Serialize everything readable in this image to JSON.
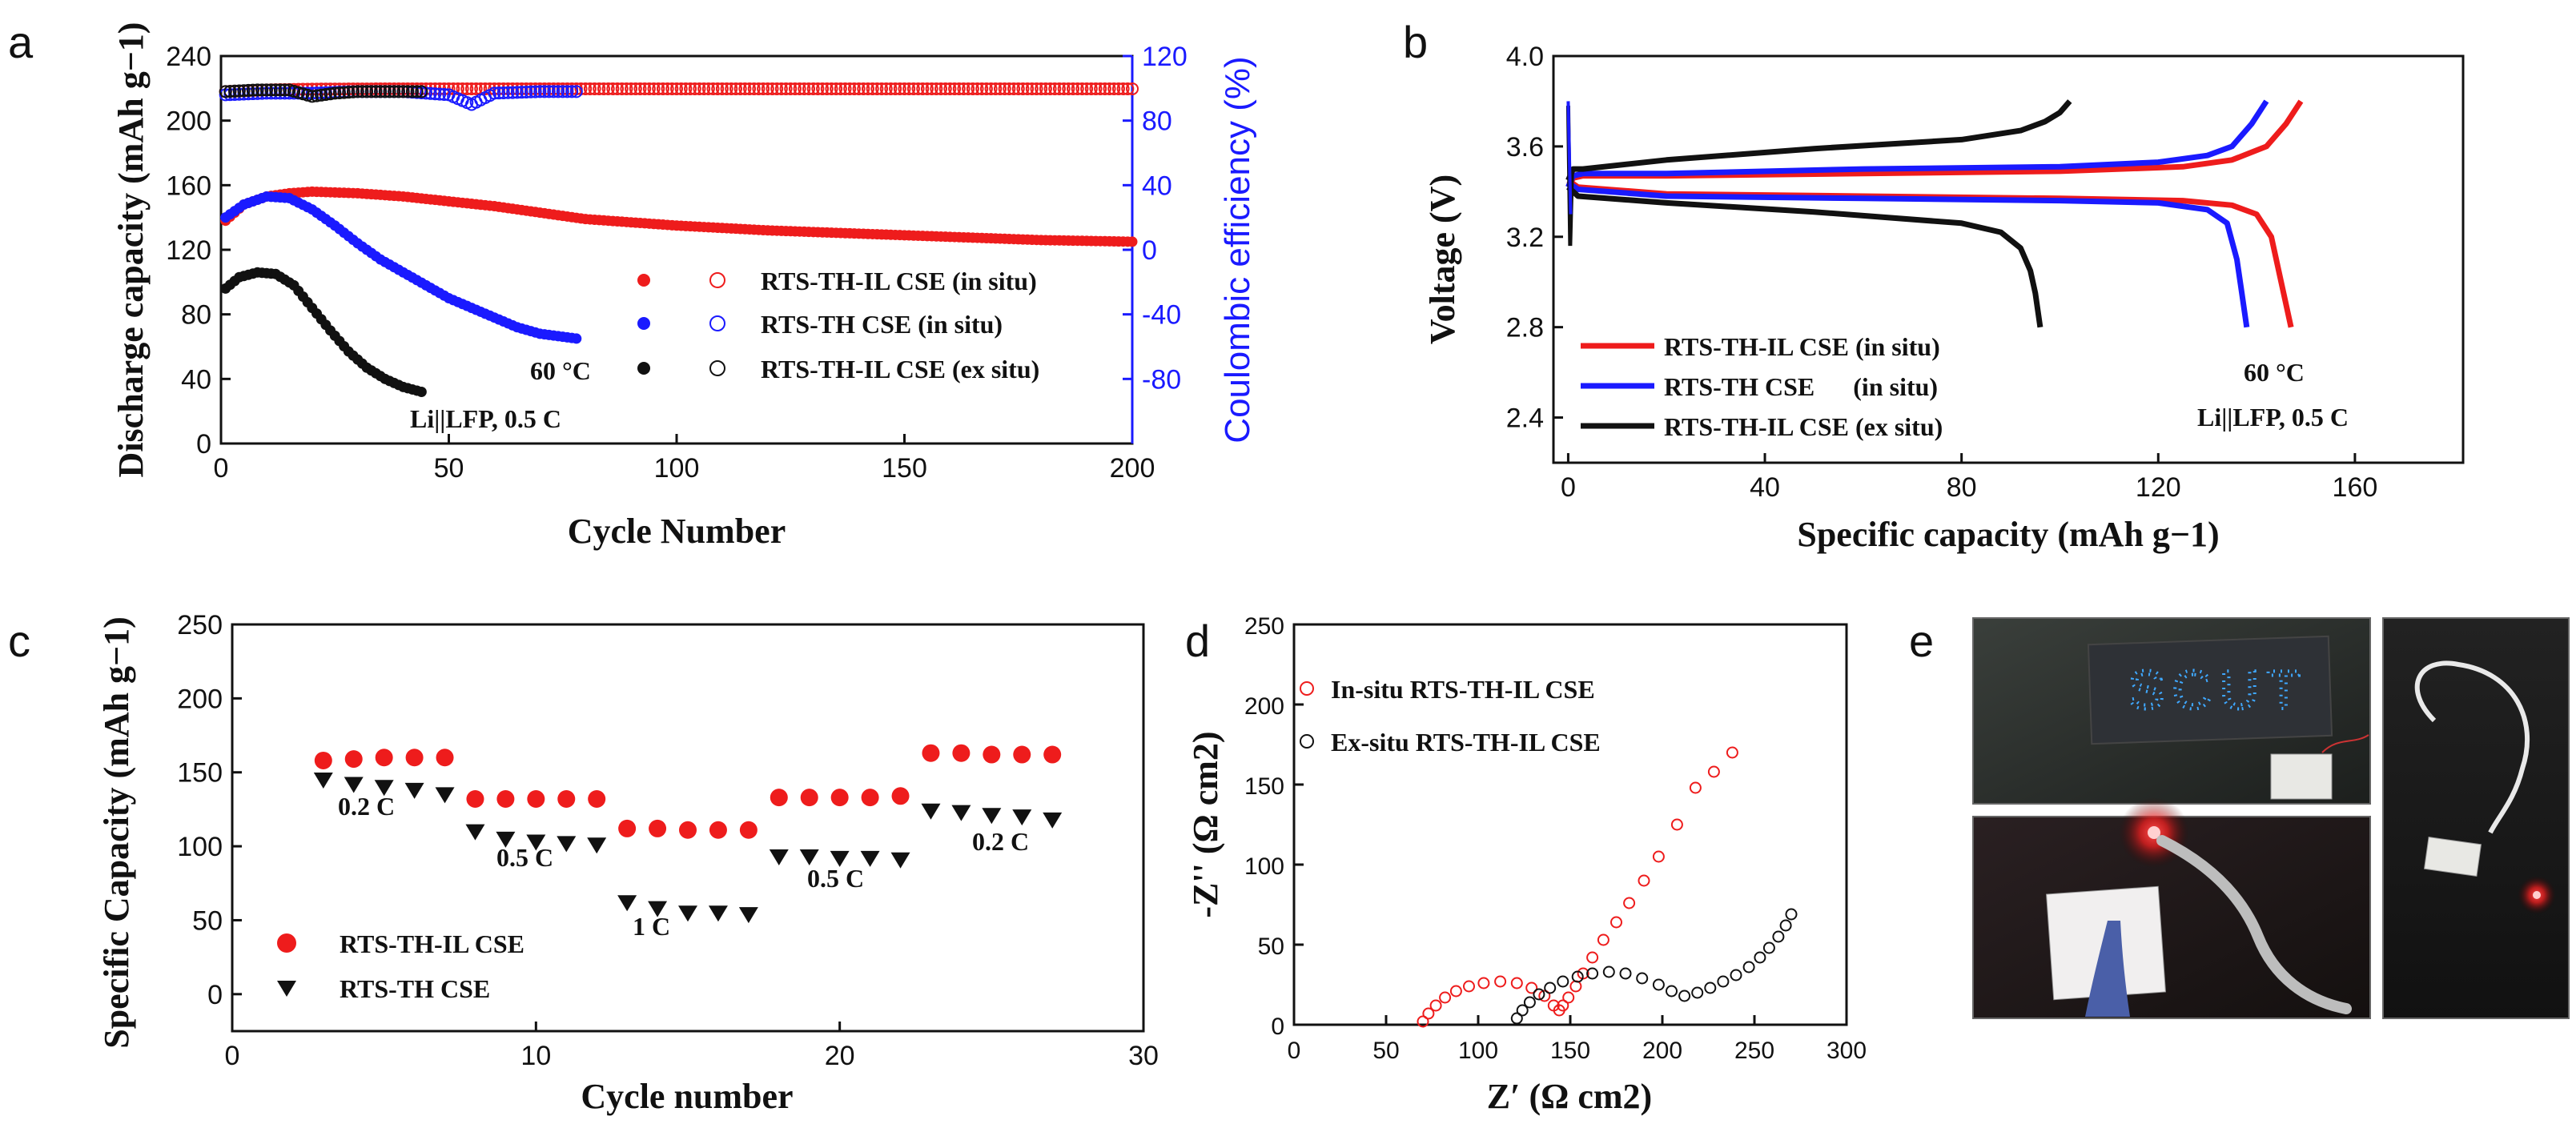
{
  "panel_letters": [
    "a",
    "b",
    "c",
    "d",
    "e"
  ],
  "panel_e": {
    "sign_text": "SCUT"
  },
  "colors": {
    "red": "#ee1c1c",
    "blue": "#1a1aff",
    "black": "#111111",
    "axis_blue": "#1a1aff"
  },
  "chart_data": [
    {
      "id": "a",
      "type": "scatter",
      "title": "",
      "xlabel": "Cycle Number",
      "ylabel": "Discharge capacity (mAh g−1)",
      "y2label": "Coulombic efficiency (%)",
      "xlim": [
        0,
        200
      ],
      "ylim": [
        0,
        240
      ],
      "y2lim": [
        -120,
        120
      ],
      "xticks": [
        "0",
        "50",
        "100",
        "150",
        "200"
      ],
      "yticks": [
        "0",
        "40",
        "80",
        "120",
        "160",
        "200",
        "240"
      ],
      "y2ticks": [
        "-80",
        "-40",
        "0",
        "40",
        "80",
        "120"
      ],
      "annotations": [
        "60 °C",
        "Li||LFP, 0.5 C"
      ],
      "legend": [
        "RTS-TH-IL CSE (in situ)",
        "RTS-TH CSE (in situ)",
        "RTS-TH-IL CSE  (ex situ)"
      ],
      "series": [
        {
          "name": "RTS-TH-IL CSE (in situ)",
          "color": "#ee1c1c",
          "capacity_x": [
            1,
            5,
            10,
            15,
            20,
            30,
            40,
            50,
            60,
            70,
            80,
            100,
            120,
            140,
            160,
            180,
            200
          ],
          "capacity_y": [
            138,
            148,
            153,
            155,
            156,
            155,
            153,
            150,
            147,
            143,
            139,
            135,
            132,
            130,
            128,
            126,
            125
          ],
          "ce_x": [
            1,
            10,
            20,
            30,
            40,
            60,
            80,
            100,
            120,
            140,
            160,
            180,
            200
          ],
          "ce_y": [
            98,
            99,
            99.5,
            99.6,
            99.7,
            99.7,
            99.7,
            99.7,
            99.7,
            99.7,
            99.7,
            99.7,
            99.7
          ]
        },
        {
          "name": "RTS-TH CSE (in situ)",
          "color": "#1a1aff",
          "capacity_x": [
            1,
            5,
            10,
            15,
            20,
            25,
            30,
            35,
            40,
            45,
            50,
            55,
            60,
            65,
            70,
            78
          ],
          "capacity_y": [
            140,
            148,
            153,
            152,
            145,
            135,
            124,
            114,
            106,
            98,
            90,
            84,
            78,
            72,
            68,
            65
          ],
          "ce_x": [
            1,
            10,
            20,
            30,
            40,
            50,
            55,
            60,
            70,
            78
          ],
          "ce_y": [
            96,
            97,
            97,
            98,
            98,
            96,
            90,
            97,
            98,
            98
          ]
        },
        {
          "name": "RTS-TH-IL CSE  (ex situ)",
          "color": "#111111",
          "capacity_x": [
            1,
            4,
            8,
            12,
            16,
            20,
            24,
            28,
            32,
            36,
            40,
            44
          ],
          "capacity_y": [
            96,
            103,
            106,
            105,
            98,
            84,
            70,
            57,
            47,
            40,
            35,
            32
          ],
          "ce_x": [
            1,
            8,
            15,
            20,
            25,
            30,
            38,
            44
          ],
          "ce_y": [
            98,
            99,
            99,
            95,
            97,
            98,
            98,
            98
          ]
        }
      ]
    },
    {
      "id": "b",
      "type": "line",
      "title": "",
      "xlabel": "Specific capacity (mAh g−1)",
      "ylabel": "Voltage (V)",
      "xlim": [
        -3,
        182
      ],
      "ylim": [
        2.2,
        4.0
      ],
      "xticks": [
        "0",
        "40",
        "80",
        "120",
        "160"
      ],
      "yticks": [
        "2.4",
        "2.8",
        "3.2",
        "3.6",
        "4.0"
      ],
      "annotations": [
        "60 °C",
        "Li||LFP, 0.5 C"
      ],
      "legend": [
        "RTS-TH-IL CSE (in situ)",
        "RTS-TH CSE      (in situ)",
        "RTS-TH-IL CSE (ex situ)"
      ],
      "series": [
        {
          "name": "RTS-TH-IL CSE (in situ)",
          "color": "#ee1c1c",
          "charge_x": [
            0,
            1,
            3,
            20,
            60,
            100,
            125,
            135,
            142,
            146,
            149
          ],
          "charge_y": [
            3.42,
            3.46,
            3.47,
            3.47,
            3.48,
            3.49,
            3.51,
            3.54,
            3.6,
            3.7,
            3.8
          ],
          "discharge_x": [
            0,
            2,
            20,
            60,
            100,
            125,
            135,
            140,
            143,
            145,
            147
          ],
          "discharge_y": [
            3.45,
            3.42,
            3.39,
            3.38,
            3.37,
            3.36,
            3.34,
            3.3,
            3.2,
            3.0,
            2.8
          ]
        },
        {
          "name": "RTS-TH CSE      (in situ)",
          "color": "#1a1aff",
          "charge_x": [
            0,
            1,
            3,
            20,
            60,
            100,
            120,
            130,
            135,
            139,
            142
          ],
          "charge_y": [
            3.42,
            3.47,
            3.48,
            3.48,
            3.5,
            3.51,
            3.53,
            3.56,
            3.6,
            3.7,
            3.8
          ],
          "discharge_x": [
            0,
            2,
            20,
            60,
            100,
            120,
            130,
            134,
            136,
            137,
            138
          ],
          "discharge_y": [
            3.44,
            3.41,
            3.38,
            3.37,
            3.36,
            3.35,
            3.32,
            3.26,
            3.1,
            2.95,
            2.8
          ]
        },
        {
          "name": "RTS-TH-IL CSE (ex situ)",
          "color": "#111111",
          "charge_x": [
            0,
            1,
            3,
            20,
            50,
            80,
            92,
            97,
            100,
            102
          ],
          "charge_y": [
            3.45,
            3.5,
            3.5,
            3.54,
            3.59,
            3.63,
            3.67,
            3.71,
            3.75,
            3.8
          ],
          "discharge_x": [
            0,
            2,
            20,
            50,
            80,
            88,
            92,
            94,
            95,
            96
          ],
          "discharge_y": [
            3.42,
            3.38,
            3.35,
            3.31,
            3.26,
            3.22,
            3.15,
            3.05,
            2.95,
            2.8
          ]
        }
      ]
    },
    {
      "id": "c",
      "type": "scatter",
      "title": "",
      "xlabel": "Cycle number",
      "ylabel": "Specific Capacity (mAh g−1)",
      "xlim": [
        0,
        30
      ],
      "ylim": [
        -25,
        250
      ],
      "xticks": [
        "0",
        "10",
        "20",
        "30"
      ],
      "yticks": [
        "0",
        "50",
        "100",
        "150",
        "200",
        "250"
      ],
      "annotations": [
        "0.2 C",
        "0.5 C",
        "1 C",
        "0.5 C",
        "0.2 C"
      ],
      "legend": [
        "RTS-TH-IL CSE",
        "RTS-TH CSE"
      ],
      "series": [
        {
          "name": "RTS-TH-IL CSE",
          "color": "#ee1c1c",
          "x": [
            3,
            4,
            5,
            6,
            7,
            8,
            9,
            10,
            11,
            12,
            13,
            14,
            15,
            16,
            17,
            18,
            19,
            20,
            21,
            22,
            23,
            24,
            25,
            26,
            27
          ],
          "y": [
            158,
            159,
            160,
            160,
            160,
            132,
            132,
            132,
            132,
            132,
            112,
            112,
            111,
            111,
            111,
            133,
            133,
            133,
            133,
            134,
            163,
            163,
            162,
            162,
            162
          ]
        },
        {
          "name": "RTS-TH CSE",
          "color": "#111111",
          "x": [
            3,
            4,
            5,
            6,
            7,
            8,
            9,
            10,
            11,
            12,
            13,
            14,
            15,
            16,
            17,
            18,
            19,
            20,
            21,
            22,
            23,
            24,
            25,
            26,
            27
          ],
          "y": [
            145,
            142,
            140,
            138,
            135,
            110,
            105,
            103,
            102,
            101,
            62,
            58,
            55,
            55,
            54,
            93,
            93,
            92,
            92,
            91,
            124,
            123,
            121,
            120,
            118
          ]
        }
      ]
    },
    {
      "id": "d",
      "type": "scatter",
      "title": "",
      "xlabel": "Z′ (Ω cm2)",
      "ylabel": "-Z'' (Ω cm2)",
      "xlim": [
        0,
        300
      ],
      "ylim": [
        0,
        250
      ],
      "xticks": [
        "0",
        "50",
        "100",
        "150",
        "200",
        "250",
        "300"
      ],
      "yticks": [
        "0",
        "50",
        "100",
        "150",
        "200",
        "250"
      ],
      "legend": [
        "In-situ RTS-TH-IL CSE",
        "Ex-situ RTS-TH-IL CSE"
      ],
      "series": [
        {
          "name": "In-situ RTS-TH-IL CSE",
          "color": "#ee1c1c",
          "x": [
            70,
            73,
            77,
            82,
            88,
            95,
            103,
            112,
            121,
            129,
            136,
            141,
            144,
            146,
            149,
            153,
            157,
            162,
            168,
            175,
            182,
            190,
            198,
            208,
            218,
            228,
            238
          ],
          "y": [
            2,
            7,
            12,
            17,
            21,
            24,
            26,
            27,
            26,
            23,
            18,
            12,
            9,
            12,
            17,
            24,
            32,
            42,
            53,
            64,
            76,
            90,
            105,
            125,
            148,
            158,
            170
          ]
        },
        {
          "name": "Ex-situ RTS-TH-IL CSE",
          "color": "#111111",
          "x": [
            121,
            124,
            128,
            133,
            139,
            146,
            154,
            162,
            171,
            180,
            189,
            198,
            205,
            212,
            219,
            226,
            233,
            240,
            247,
            253,
            258,
            263,
            267,
            270
          ],
          "y": [
            4,
            9,
            14,
            19,
            23,
            27,
            30,
            32,
            33,
            32,
            29,
            25,
            21,
            18,
            20,
            23,
            27,
            31,
            36,
            42,
            48,
            55,
            62,
            69
          ]
        }
      ]
    }
  ]
}
